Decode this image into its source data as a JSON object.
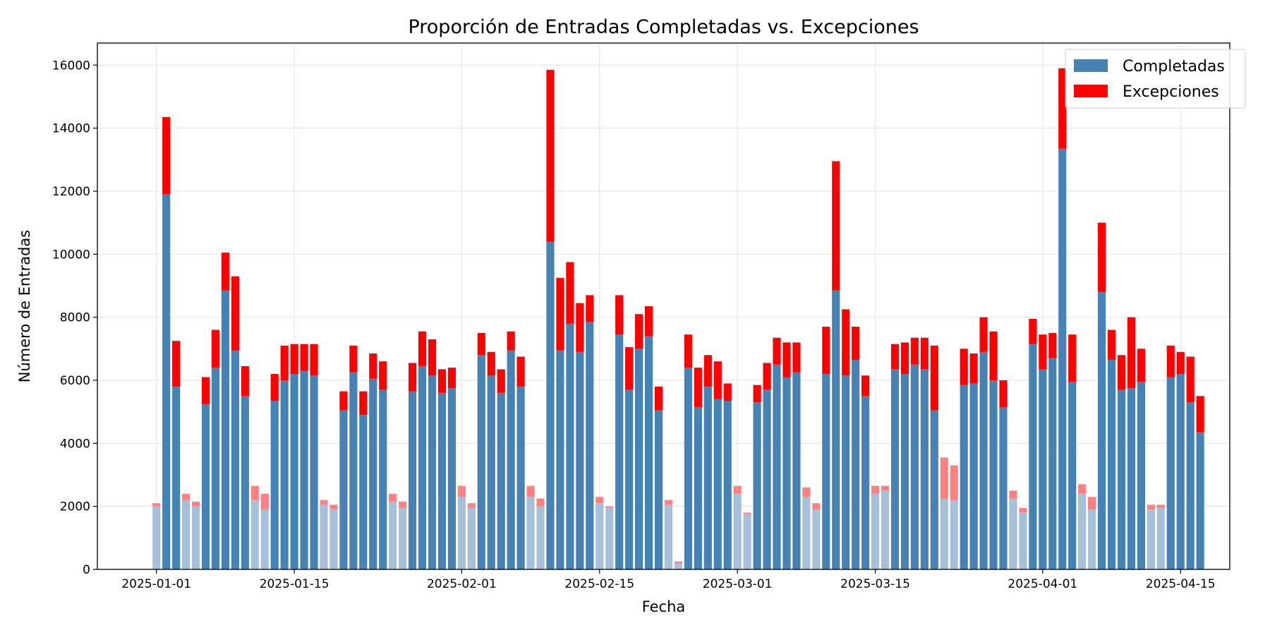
{
  "chart_data": {
    "type": "bar",
    "stacked": true,
    "title": "Proporción de Entradas Completadas vs. Excepciones",
    "xlabel": "Fecha",
    "ylabel": "Número de Entradas",
    "ylim": [
      0,
      16700
    ],
    "yticks": [
      0,
      2000,
      4000,
      6000,
      8000,
      10000,
      12000,
      14000,
      16000
    ],
    "x_start": "2025-01-01",
    "x_range": [
      "2024-12-26",
      "2025-04-20"
    ],
    "xticks": [
      {
        "date": "2025-01-01",
        "label": "2025-01-01"
      },
      {
        "date": "2025-01-15",
        "label": "2025-01-15"
      },
      {
        "date": "2025-02-01",
        "label": "2025-02-01"
      },
      {
        "date": "2025-02-15",
        "label": "2025-02-15"
      },
      {
        "date": "2025-03-01",
        "label": "2025-03-01"
      },
      {
        "date": "2025-03-15",
        "label": "2025-03-15"
      },
      {
        "date": "2025-04-01",
        "label": "2025-04-01"
      },
      {
        "date": "2025-04-15",
        "label": "2025-04-15"
      }
    ],
    "grid": true,
    "legend_position": "top-right",
    "colors": {
      "completadas": "#4682b4",
      "completadas_faded": "#a6c0da",
      "excepciones": "#ff0000",
      "excepciones_faded": "#ff8080"
    },
    "series": [
      {
        "name": "Completadas",
        "values": [
          2000,
          11900,
          5800,
          2200,
          2000,
          5250,
          6400,
          8850,
          6950,
          5500,
          2200,
          1900,
          5350,
          6000,
          6200,
          6300,
          6150,
          2050,
          1900,
          5050,
          6250,
          4900,
          6050,
          5700,
          2150,
          1950,
          5650,
          6450,
          6150,
          5600,
          5750,
          2300,
          1950,
          6800,
          6150,
          5600,
          6950,
          5800,
          2300,
          2000,
          10400,
          6950,
          7800,
          6900,
          7850,
          2100,
          1950,
          7450,
          5700,
          7000,
          7400,
          5050,
          2050,
          200,
          6400,
          5150,
          5800,
          5400,
          5350,
          2400,
          1750,
          5300,
          5700,
          6500,
          6100,
          6250,
          2300,
          1900,
          6200,
          8850,
          6150,
          6650,
          5500,
          2400,
          2500,
          6350,
          6200,
          6500,
          6350,
          5050,
          2250,
          2200,
          5850,
          5900,
          6900,
          6000,
          5150,
          2250,
          1800,
          7150,
          6350,
          6700,
          13350,
          5950,
          2400,
          1900,
          8800,
          6650,
          5700,
          5750,
          5950,
          1900,
          1950,
          6100,
          6200,
          5300,
          4350
        ]
      },
      {
        "name": "Excepciones",
        "values": [
          100,
          2450,
          1450,
          200,
          150,
          850,
          1200,
          1200,
          2350,
          950,
          450,
          500,
          850,
          1100,
          950,
          850,
          1000,
          150,
          150,
          600,
          850,
          750,
          800,
          900,
          250,
          200,
          900,
          1100,
          1150,
          750,
          650,
          350,
          150,
          700,
          750,
          750,
          600,
          950,
          350,
          250,
          5450,
          2300,
          1950,
          1550,
          850,
          200,
          50,
          1250,
          1350,
          1100,
          950,
          750,
          150,
          50,
          1050,
          1250,
          1000,
          1200,
          550,
          250,
          50,
          550,
          850,
          850,
          1100,
          950,
          300,
          200,
          1500,
          4100,
          2100,
          1050,
          650,
          250,
          150,
          800,
          1000,
          850,
          1000,
          2050,
          1300,
          1100,
          1150,
          950,
          1100,
          1550,
          850,
          250,
          150,
          800,
          1100,
          800,
          2550,
          1500,
          300,
          400,
          2200,
          950,
          1100,
          2250,
          1050,
          150,
          100,
          1000,
          700,
          1450,
          1150
        ]
      }
    ],
    "faded_indices": [
      0,
      3,
      4,
      10,
      11,
      17,
      18,
      24,
      25,
      31,
      32,
      38,
      39,
      45,
      46,
      52,
      53,
      59,
      60,
      66,
      67,
      73,
      74,
      80,
      81,
      87,
      88,
      94,
      95,
      101,
      102
    ]
  }
}
